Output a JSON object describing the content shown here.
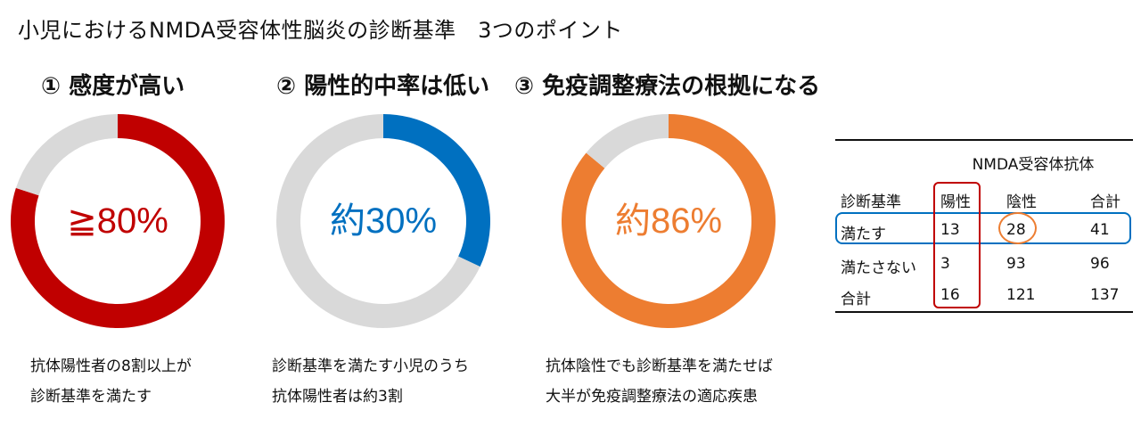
{
  "title": "小児におけるNMDA受容体性脳炎の診断基準　3つのポイント",
  "points": [
    {
      "heading": "① 感度が高い",
      "label": "≧80%",
      "caption_lines": [
        "抗体陽性者の8割以上が",
        "診断基準を満たす"
      ]
    },
    {
      "heading": "② 陽性的中率は低い",
      "label": "約30%",
      "caption_lines": [
        "診断基準を満たす小児のうち",
        "抗体陽性者は約3割"
      ]
    },
    {
      "heading": "③ 免疫調整療法の根拠になる",
      "label": "約86%",
      "caption_lines": [
        "抗体陰性でも診断基準を満たせば",
        "大半が免疫調整療法の適応疾患"
      ]
    }
  ],
  "chart_data": [
    {
      "type": "pie",
      "style": "donut",
      "values": [
        80,
        20
      ],
      "colors": [
        "#c00000",
        "#d9d9d9"
      ],
      "center_label": "≧80%"
    },
    {
      "type": "pie",
      "style": "donut",
      "values": [
        32,
        68
      ],
      "colors": [
        "#0070c0",
        "#d9d9d9"
      ],
      "center_label": "約30%"
    },
    {
      "type": "pie",
      "style": "donut",
      "values": [
        86,
        14
      ],
      "colors": [
        "#ed7d31",
        "#d9d9d9"
      ],
      "center_label": "約86%"
    },
    {
      "type": "table",
      "title": "NMDA受容体抗体",
      "row_header": "診断基準",
      "columns": [
        "陽性",
        "陰性",
        "合計"
      ],
      "rows": [
        {
          "label": "満たす",
          "values": [
            "13",
            "28",
            "41"
          ]
        },
        {
          "label": "満たさない",
          "values": [
            "3",
            "93",
            "96"
          ]
        },
        {
          "label": "合計",
          "values": [
            "16",
            "121",
            "137"
          ]
        }
      ],
      "highlights": {
        "column": "陽性",
        "row": "満たす",
        "cell": "28",
        "column_color": "#c00000",
        "row_color": "#0070c0",
        "cell_color": "#ed7d31"
      }
    }
  ]
}
